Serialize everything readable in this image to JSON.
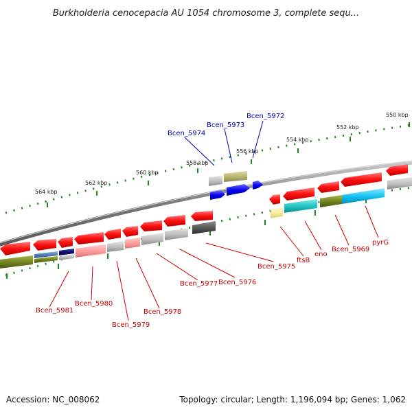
{
  "title": "Burkholderia cenocepacia AU 1054 chromosome 3, complete sequ...",
  "footer": {
    "accession": "Accession: NC_008062",
    "topology": "Topology: circular; Length: 1,196,094 bp; Genes: 1,062"
  },
  "colors": {
    "backbone": "#888888",
    "tick": "#1a8a1a",
    "label_red": "#cc0000",
    "label_blue": "#0000bb"
  },
  "ticks": [
    "550 kbp",
    "552 kbp",
    "554 kbp",
    "556 kbp",
    "558 kbp",
    "560 kbp",
    "562 kbp",
    "564 kbp"
  ],
  "labels_bottom": [
    "Bcen_5981",
    "Bcen_5980",
    "Bcen_5979",
    "Bcen_5978",
    "Bcen_5977",
    "Bcen_5976",
    "Bcen_5975",
    "ftsB",
    "eno",
    "Bcen_5969",
    "pyrG"
  ],
  "labels_top": [
    "Bcen_5974",
    "Bcen_5973",
    "Bcen_5972"
  ]
}
